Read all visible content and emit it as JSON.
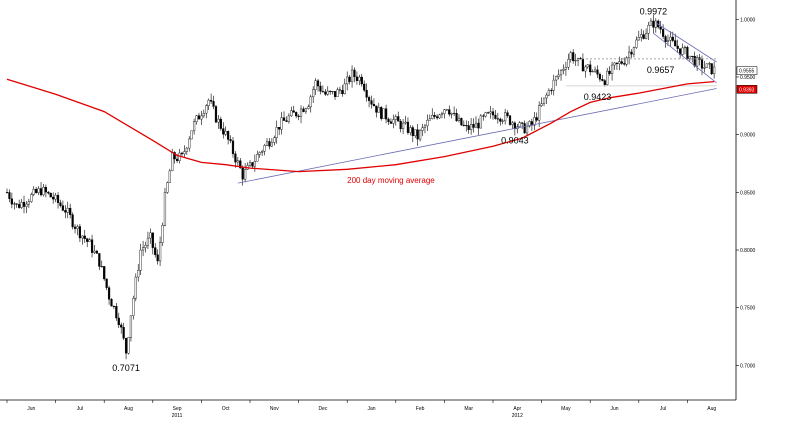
{
  "chart_data": {
    "type": "candlestick",
    "title": "",
    "xlabel": "",
    "ylabel": "",
    "ylim": [
      0.67,
      1.015
    ],
    "y_ticks": [
      "1.0000",
      "0.9500",
      "0.9000",
      "0.8500",
      "0.8000",
      "0.7500",
      "0.7000"
    ],
    "y_tick_values": [
      1.0,
      0.95,
      0.9,
      0.85,
      0.8,
      0.75,
      0.7
    ],
    "months": [
      "Jun",
      "Jul",
      "Aug",
      "Sep",
      "Oct",
      "Nov",
      "Dec",
      "Jan",
      "Feb",
      "Mar",
      "Apr",
      "May",
      "Jun",
      "Jul",
      "Aug"
    ],
    "years": [
      {
        "label": "2011",
        "month_index": 3
      },
      {
        "label": "2012",
        "month_index": 10
      }
    ],
    "x_range": [
      0,
      15
    ],
    "price_close_path": [
      [
        0.0,
        0.85
      ],
      [
        0.2,
        0.838
      ],
      [
        0.45,
        0.845
      ],
      [
        0.7,
        0.852
      ],
      [
        0.95,
        0.845
      ],
      [
        1.2,
        0.835
      ],
      [
        1.45,
        0.818
      ],
      [
        1.7,
        0.805
      ],
      [
        1.9,
        0.79
      ],
      [
        2.1,
        0.76
      ],
      [
        2.3,
        0.74
      ],
      [
        2.45,
        0.712
      ],
      [
        2.55,
        0.745
      ],
      [
        2.75,
        0.8
      ],
      [
        2.95,
        0.81
      ],
      [
        3.1,
        0.788
      ],
      [
        3.25,
        0.845
      ],
      [
        3.4,
        0.88
      ],
      [
        3.6,
        0.88
      ],
      [
        3.8,
        0.905
      ],
      [
        4.0,
        0.92
      ],
      [
        4.15,
        0.93
      ],
      [
        4.3,
        0.915
      ],
      [
        4.5,
        0.9
      ],
      [
        4.7,
        0.88
      ],
      [
        4.85,
        0.865
      ],
      [
        5.0,
        0.872
      ],
      [
        5.2,
        0.885
      ],
      [
        5.4,
        0.895
      ],
      [
        5.6,
        0.908
      ],
      [
        5.8,
        0.915
      ],
      [
        6.0,
        0.92
      ],
      [
        6.2,
        0.928
      ],
      [
        6.35,
        0.945
      ],
      [
        6.55,
        0.935
      ],
      [
        6.75,
        0.935
      ],
      [
        6.95,
        0.942
      ],
      [
        7.1,
        0.952
      ],
      [
        7.3,
        0.948
      ],
      [
        7.45,
        0.932
      ],
      [
        7.65,
        0.92
      ],
      [
        7.85,
        0.915
      ],
      [
        8.05,
        0.91
      ],
      [
        8.25,
        0.905
      ],
      [
        8.45,
        0.898
      ],
      [
        8.65,
        0.91
      ],
      [
        8.85,
        0.918
      ],
      [
        9.05,
        0.925
      ],
      [
        9.25,
        0.912
      ],
      [
        9.45,
        0.905
      ],
      [
        9.65,
        0.908
      ],
      [
        9.85,
        0.915
      ],
      [
        10.05,
        0.918
      ],
      [
        10.25,
        0.915
      ],
      [
        10.45,
        0.91
      ],
      [
        10.6,
        0.905
      ],
      [
        10.8,
        0.908
      ],
      [
        11.0,
        0.925
      ],
      [
        11.2,
        0.942
      ],
      [
        11.4,
        0.955
      ],
      [
        11.6,
        0.97
      ],
      [
        11.75,
        0.962
      ],
      [
        11.95,
        0.958
      ],
      [
        12.15,
        0.952
      ],
      [
        12.3,
        0.948
      ],
      [
        12.5,
        0.958
      ],
      [
        12.7,
        0.965
      ],
      [
        12.9,
        0.978
      ],
      [
        13.1,
        0.988
      ],
      [
        13.3,
        0.997
      ],
      [
        13.45,
        0.992
      ],
      [
        13.6,
        0.982
      ],
      [
        13.8,
        0.975
      ],
      [
        14.0,
        0.97
      ],
      [
        14.2,
        0.962
      ],
      [
        14.4,
        0.958
      ],
      [
        14.55,
        0.956
      ]
    ],
    "series": [
      {
        "name": "200 day moving average",
        "color": "#e00000",
        "values": [
          [
            0.0,
            0.948
          ],
          [
            1.0,
            0.935
          ],
          [
            2.0,
            0.92
          ],
          [
            3.0,
            0.895
          ],
          [
            3.5,
            0.882
          ],
          [
            4.0,
            0.876
          ],
          [
            4.5,
            0.874
          ],
          [
            5.0,
            0.871
          ],
          [
            6.0,
            0.868
          ],
          [
            7.0,
            0.87
          ],
          [
            8.0,
            0.874
          ],
          [
            9.0,
            0.881
          ],
          [
            10.0,
            0.89
          ],
          [
            10.6,
            0.897
          ],
          [
            11.2,
            0.91
          ],
          [
            11.6,
            0.92
          ],
          [
            12.0,
            0.928
          ],
          [
            12.4,
            0.932
          ],
          [
            13.0,
            0.936
          ],
          [
            13.5,
            0.94
          ],
          [
            14.0,
            0.944
          ],
          [
            14.55,
            0.946
          ]
        ]
      }
    ],
    "trendlines": [
      {
        "from": [
          4.75,
          0.858
        ],
        "to": [
          14.6,
          0.94
        ],
        "color": "#6b6bb5"
      },
      {
        "from": [
          13.35,
          0.997
        ],
        "to": [
          14.6,
          0.963
        ],
        "color": "#6b6bb5"
      },
      {
        "from": [
          13.3,
          0.988
        ],
        "to": [
          14.6,
          0.945
        ],
        "color": "#6b6bb5"
      }
    ],
    "reference_lines": [
      {
        "y": 0.9657,
        "from_x": 11.75,
        "to_x": 14.6,
        "style": "dotted",
        "color": "#888888"
      },
      {
        "y": 0.9423,
        "from_x": 11.5,
        "to_x": 14.6,
        "style": "solid",
        "color": "#c8c8c8"
      }
    ],
    "annotations": [
      {
        "text": "0.7071",
        "x": 2.45,
        "y": 0.7071,
        "position": "below"
      },
      {
        "text": "0.9043",
        "x": 10.45,
        "y": 0.9043,
        "position": "below"
      },
      {
        "text": "0.9423",
        "x": 12.15,
        "y": 0.9423,
        "position": "below"
      },
      {
        "text": "0.9657",
        "x": 13.45,
        "y": 0.9657,
        "position": "below"
      },
      {
        "text": "0.9972",
        "x": 13.3,
        "y": 0.9972,
        "position": "above"
      }
    ],
    "ma_label": {
      "text": "200 day moving average",
      "x": 7.9,
      "y": 0.858
    },
    "last_price_tags": [
      {
        "text": "0.9555",
        "y": 0.9555,
        "fill": "#ffffff",
        "color": "#000000"
      },
      {
        "text": "0.9393",
        "y": 0.9393,
        "fill": "#e00000",
        "color": "#ffffff"
      }
    ],
    "grid": false,
    "legend": "none"
  }
}
